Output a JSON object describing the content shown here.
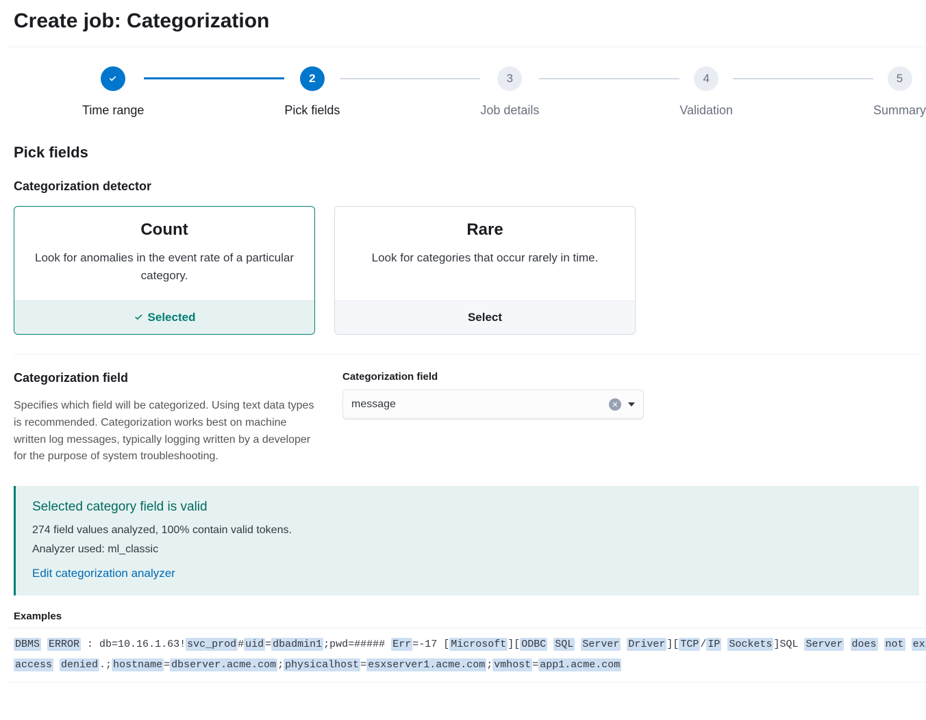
{
  "page": {
    "title": "Create job: Categorization"
  },
  "stepper": {
    "steps": [
      {
        "num": "1",
        "label": "Time range",
        "state": "done"
      },
      {
        "num": "2",
        "label": "Pick fields",
        "state": "current"
      },
      {
        "num": "3",
        "label": "Job details",
        "state": "upcoming"
      },
      {
        "num": "4",
        "label": "Validation",
        "state": "upcoming"
      },
      {
        "num": "5",
        "label": "Summary",
        "state": "upcoming"
      }
    ]
  },
  "section": {
    "title": "Pick fields",
    "detector_heading": "Categorization detector"
  },
  "detectors": {
    "count": {
      "title": "Count",
      "desc": "Look for anomalies in the event rate of a particular category.",
      "footer": "Selected",
      "selected": true
    },
    "rare": {
      "title": "Rare",
      "desc": "Look for categories that occur rarely in time.",
      "footer": "Select",
      "selected": false
    }
  },
  "cat_field": {
    "heading": "Categorization field",
    "help": "Specifies which field will be categorized. Using text data types is recommended. Categorization works best on machine written log messages, typically logging written by a developer for the purpose of system troubleshooting.",
    "label": "Categorization field",
    "value": "message"
  },
  "callout": {
    "title": "Selected category field is valid",
    "line1": "274 field values analyzed, 100% contain valid tokens.",
    "line2": "Analyzer used: ml_classic",
    "link": "Edit categorization analyzer"
  },
  "examples": {
    "label": "Examples",
    "rows": [
      {
        "segments": [
          {
            "t": "DBMS",
            "hl": true
          },
          {
            "t": " ",
            "hl": false
          },
          {
            "t": "ERROR",
            "hl": true
          },
          {
            "t": " : db=10.16.1.63!",
            "hl": false
          },
          {
            "t": "svc_prod",
            "hl": true
          },
          {
            "t": "#",
            "hl": false
          },
          {
            "t": "uid",
            "hl": true
          },
          {
            "t": "=",
            "hl": false
          },
          {
            "t": "dbadmin1",
            "hl": true
          },
          {
            "t": ";pwd=##### ",
            "hl": false
          },
          {
            "t": "Err",
            "hl": true
          },
          {
            "t": "=-17 [",
            "hl": false
          },
          {
            "t": "Microsoft",
            "hl": true
          },
          {
            "t": "][",
            "hl": false
          },
          {
            "t": "ODBC",
            "hl": true
          },
          {
            "t": " ",
            "hl": false
          },
          {
            "t": "SQL",
            "hl": true
          },
          {
            "t": " ",
            "hl": false
          },
          {
            "t": "Server",
            "hl": true
          },
          {
            "t": " ",
            "hl": false
          },
          {
            "t": "Driver",
            "hl": true
          },
          {
            "t": "][",
            "hl": false
          },
          {
            "t": "TCP",
            "hl": true
          },
          {
            "t": "/",
            "hl": false
          },
          {
            "t": "IP",
            "hl": true
          },
          {
            "t": " ",
            "hl": false
          },
          {
            "t": "Sockets",
            "hl": true
          },
          {
            "t": "]SQL ",
            "hl": false
          },
          {
            "t": "Server",
            "hl": true
          },
          {
            "t": " ",
            "hl": false
          },
          {
            "t": "does",
            "hl": true
          },
          {
            "t": " ",
            "hl": false
          },
          {
            "t": "not",
            "hl": true
          },
          {
            "t": " ",
            "hl": false
          },
          {
            "t": "exi",
            "hl": true
          }
        ]
      },
      {
        "segments": [
          {
            "t": "access",
            "hl": true
          },
          {
            "t": " ",
            "hl": false
          },
          {
            "t": "denied",
            "hl": true
          },
          {
            "t": ".;",
            "hl": false
          },
          {
            "t": "hostname",
            "hl": true
          },
          {
            "t": "=",
            "hl": false
          },
          {
            "t": "dbserver.acme.com",
            "hl": true
          },
          {
            "t": ";",
            "hl": false
          },
          {
            "t": "physicalhost",
            "hl": true
          },
          {
            "t": "=",
            "hl": false
          },
          {
            "t": "esxserver1.acme.com",
            "hl": true
          },
          {
            "t": ";",
            "hl": false
          },
          {
            "t": "vmhost",
            "hl": true
          },
          {
            "t": "=",
            "hl": false
          },
          {
            "t": "app1.acme.com",
            "hl": true
          }
        ]
      }
    ]
  },
  "colors": {
    "primary": "#0077cc",
    "success": "#017d73",
    "success_bg": "#e6f2f1",
    "token_bg": "#cddff2",
    "link": "#006bb4"
  }
}
